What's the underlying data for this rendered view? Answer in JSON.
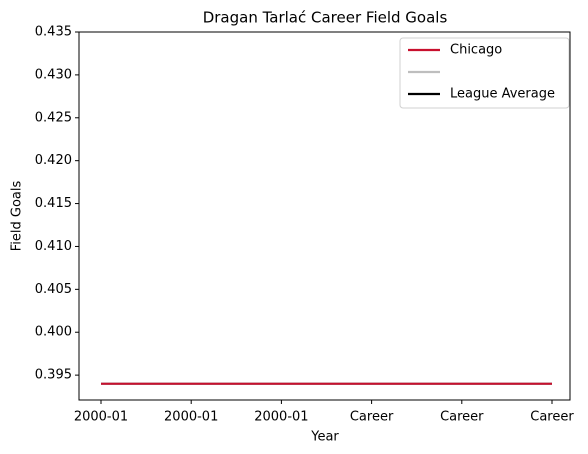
{
  "chart_data": {
    "type": "line",
    "title": "Dragan Tarlać Career Field Goals",
    "xlabel": "Year",
    "ylabel": "Field Goals",
    "categories": [
      "2000-01",
      "2000-01",
      "2000-01",
      "Career",
      "Career",
      "Career"
    ],
    "series": [
      {
        "name": "Chicago",
        "color": "#c8102e",
        "values": [
          0.394,
          0.394,
          0.394,
          0.394,
          0.394,
          0.394
        ]
      },
      {
        "color": "#bebebe",
        "values": [
          0.394,
          0.394,
          0.394,
          0.394,
          0.394,
          0.394
        ]
      },
      {
        "name": "League Average",
        "color": "#000000",
        "values": [
          0.394,
          0.394,
          0.394,
          0.394,
          0.394,
          0.394
        ]
      }
    ],
    "ylim": [
      0.3921,
      0.435
    ],
    "yticks": [
      0.395,
      {
        "value": 0.4,
        "label": "0.400"
      },
      0.405,
      {
        "value": 0.41,
        "label": "0.410"
      },
      0.415,
      {
        "value": 0.42,
        "label": "0.420"
      },
      0.425,
      {
        "value": 0.43,
        "label": "0.430"
      },
      0.435
    ],
    "legend": "upper right"
  }
}
